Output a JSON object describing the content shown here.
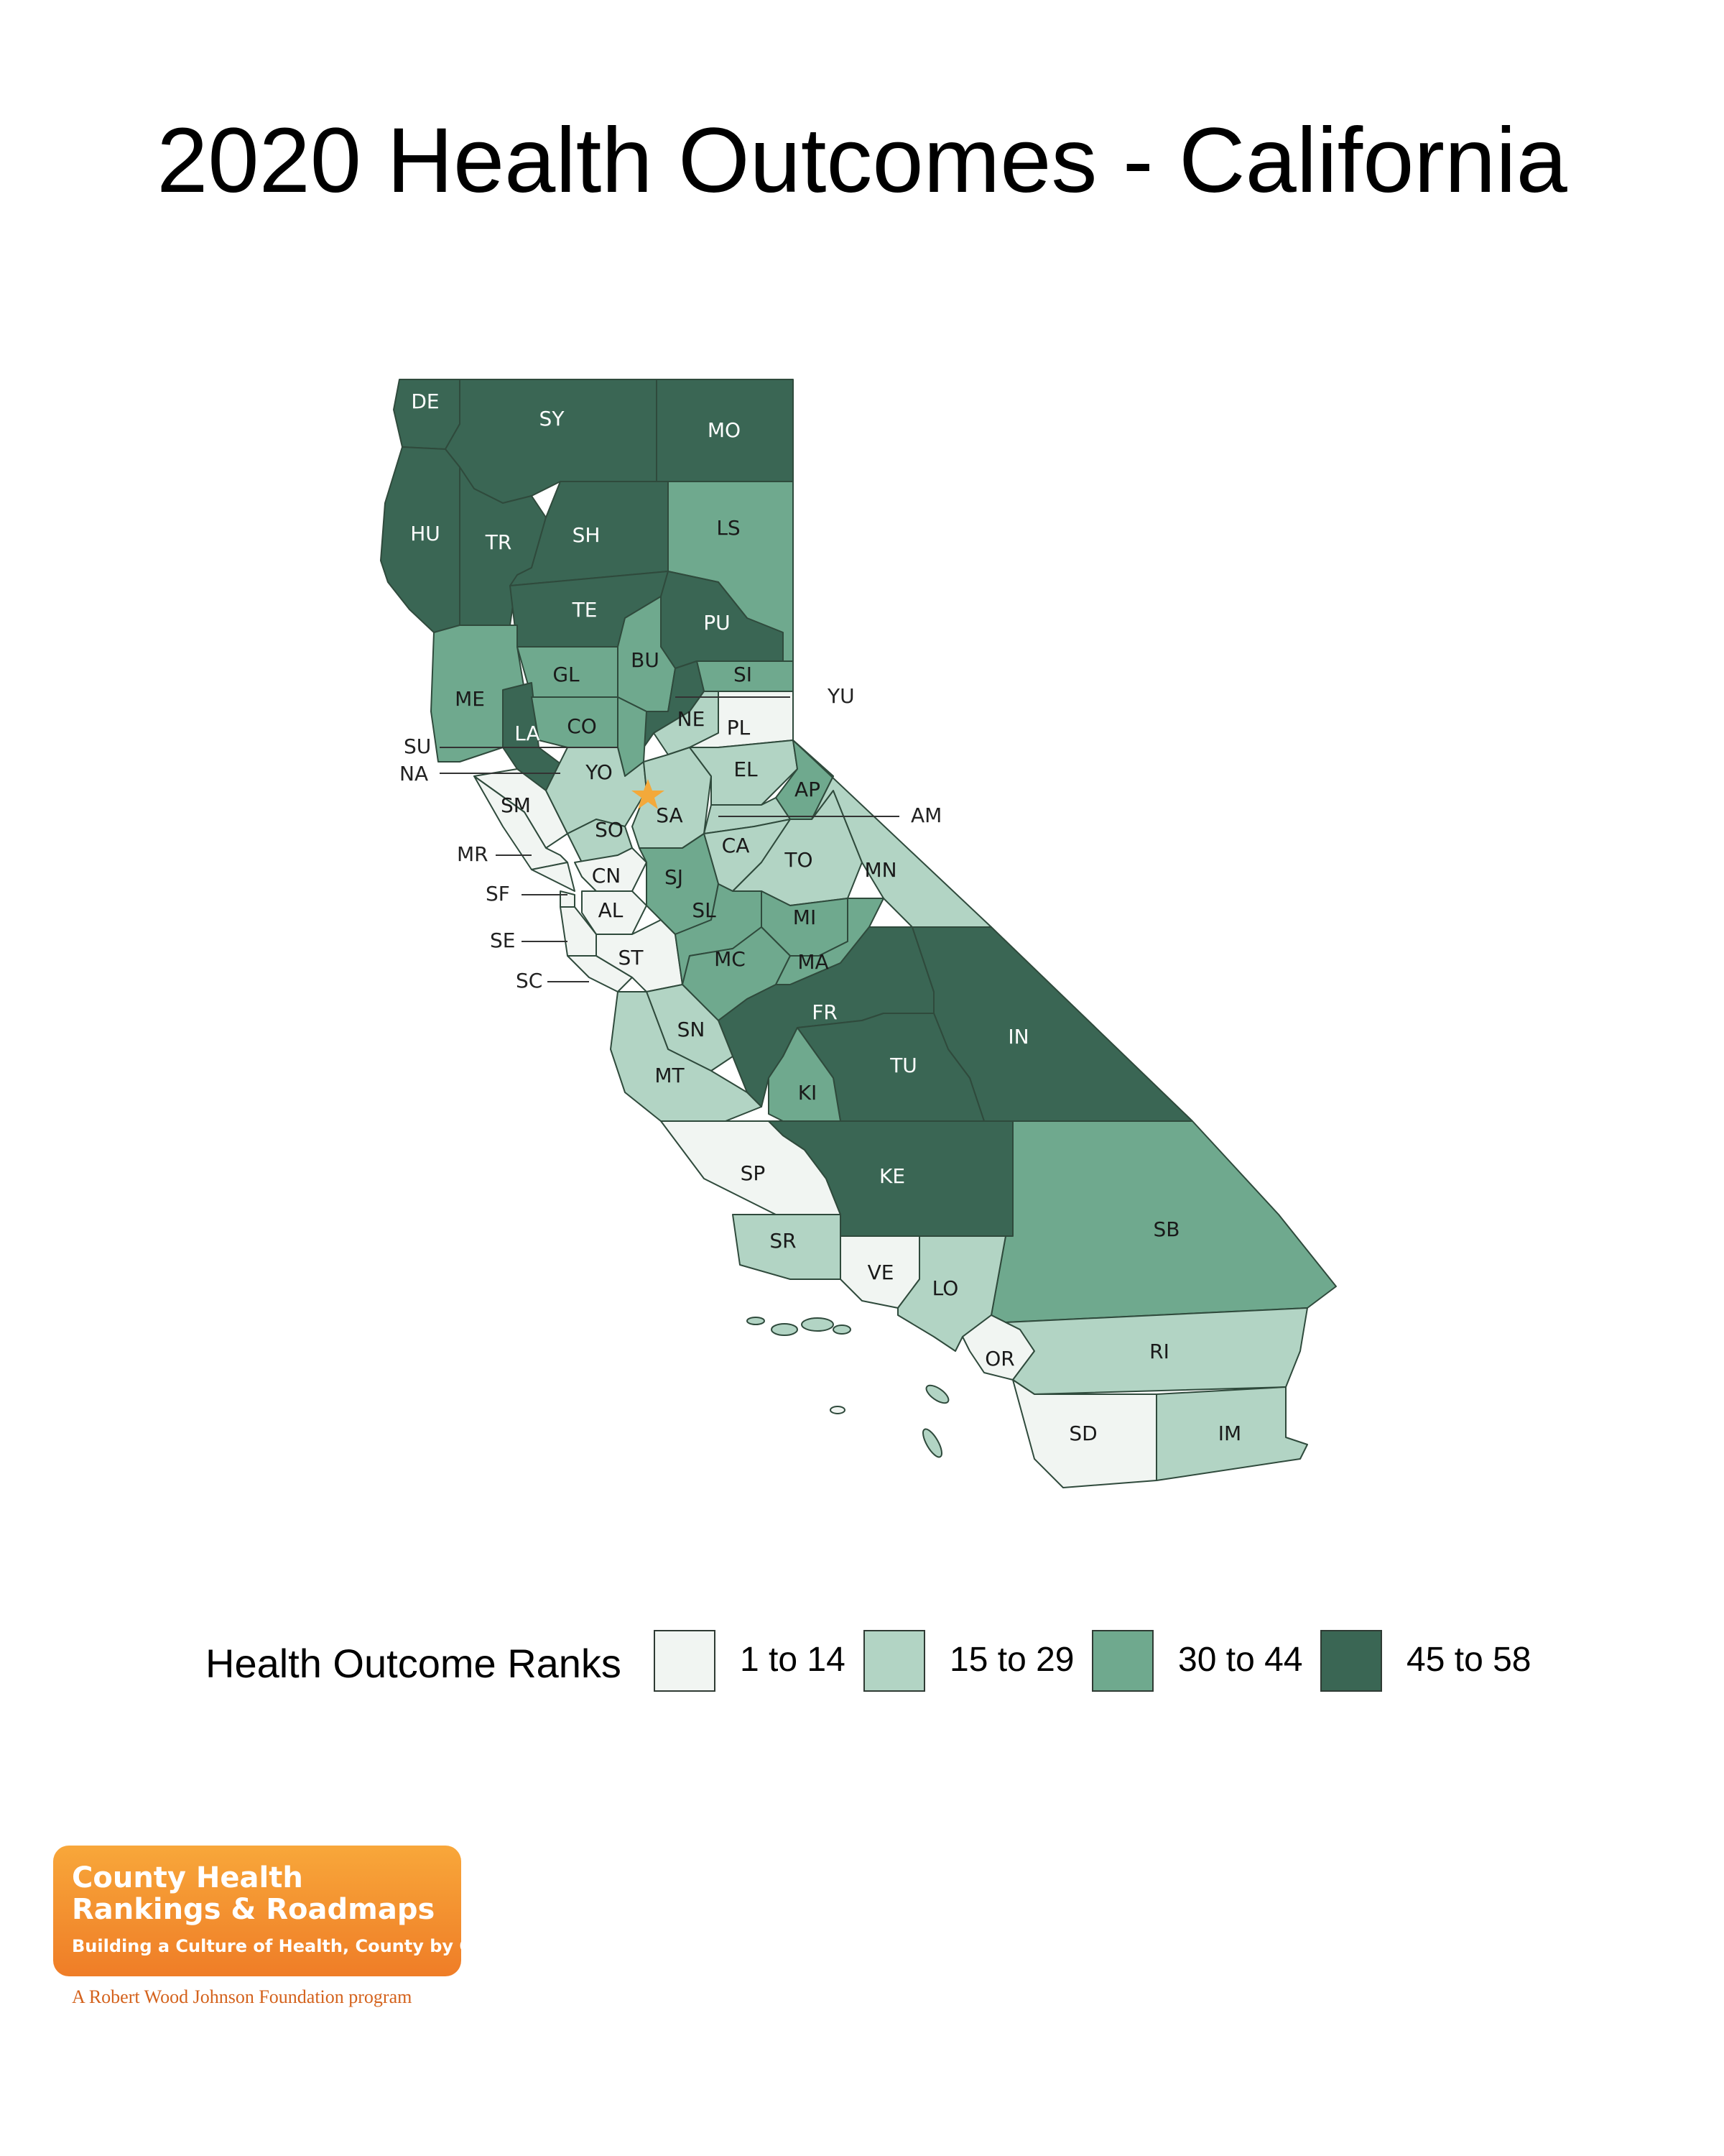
{
  "title": "2020 Health Outcomes - California",
  "legend": {
    "title": "Health Outcome Ranks",
    "classes": [
      {
        "label": "1 to 14",
        "color": "#f1f5f2"
      },
      {
        "label": "15 to 29",
        "color": "#b2d4c4"
      },
      {
        "label": "30 to 44",
        "color": "#6fa98e"
      },
      {
        "label": "45 to 58",
        "color": "#3a6654"
      }
    ]
  },
  "counties": {
    "DE": {
      "label": "DE",
      "class": 3
    },
    "SY": {
      "label": "SY",
      "class": 3
    },
    "MO": {
      "label": "MO",
      "class": 3
    },
    "HU": {
      "label": "HU",
      "class": 3
    },
    "TR": {
      "label": "TR",
      "class": 3
    },
    "SH": {
      "label": "SH",
      "class": 3
    },
    "LS": {
      "label": "LS",
      "class": 2
    },
    "TE": {
      "label": "TE",
      "class": 3
    },
    "PU": {
      "label": "PU",
      "class": 3
    },
    "ME": {
      "label": "ME",
      "class": 2
    },
    "GL": {
      "label": "GL",
      "class": 2
    },
    "BU": {
      "label": "BU",
      "class": 2
    },
    "SI": {
      "label": "SI",
      "class": 2
    },
    "YU": {
      "label": "YU",
      "class": 3
    },
    "LA": {
      "label": "LA",
      "class": 3
    },
    "CO": {
      "label": "CO",
      "class": 2
    },
    "SU": {
      "label": "SU",
      "class": 2
    },
    "NE": {
      "label": "NE",
      "class": 1
    },
    "PL": {
      "label": "PL",
      "class": 0
    },
    "NA": {
      "label": "NA",
      "class": 0
    },
    "YO": {
      "label": "YO",
      "class": 1
    },
    "EL": {
      "label": "EL",
      "class": 1
    },
    "AP": {
      "label": "AP",
      "class": 2
    },
    "AM": {
      "label": "AM",
      "class": 1
    },
    "SM": {
      "label": "SM",
      "class": 0
    },
    "SO": {
      "label": "SO",
      "class": 1
    },
    "SA": {
      "label": "SA",
      "class": 1
    },
    "CA": {
      "label": "CA",
      "class": 1
    },
    "MR": {
      "label": "MR",
      "class": 0
    },
    "TO": {
      "label": "TO",
      "class": 1
    },
    "MN": {
      "label": "MN",
      "class": 1
    },
    "CN": {
      "label": "CN",
      "class": 0
    },
    "SJ": {
      "label": "SJ",
      "class": 2
    },
    "SF": {
      "label": "SF",
      "class": 0
    },
    "AL": {
      "label": "AL",
      "class": 0
    },
    "SL": {
      "label": "SL",
      "class": 2
    },
    "MI": {
      "label": "MI",
      "class": 2
    },
    "SE": {
      "label": "SE",
      "class": 0
    },
    "ST": {
      "label": "ST",
      "class": 0
    },
    "MC": {
      "label": "MC",
      "class": 2
    },
    "MA": {
      "label": "MA",
      "class": 2
    },
    "SC": {
      "label": "SC",
      "class": 0
    },
    "FR": {
      "label": "FR",
      "class": 3
    },
    "IN": {
      "label": "IN",
      "class": 3
    },
    "SN": {
      "label": "SN",
      "class": 1
    },
    "TU": {
      "label": "TU",
      "class": 3
    },
    "MT": {
      "label": "MT",
      "class": 1
    },
    "KI": {
      "label": "KI",
      "class": 2
    },
    "SP": {
      "label": "SP",
      "class": 0
    },
    "KE": {
      "label": "KE",
      "class": 3
    },
    "SB": {
      "label": "SB",
      "class": 2
    },
    "SR": {
      "label": "SR",
      "class": 1
    },
    "VE": {
      "label": "VE",
      "class": 0
    },
    "LO": {
      "label": "LO",
      "class": 1
    },
    "OR": {
      "label": "OR",
      "class": 0
    },
    "RI": {
      "label": "RI",
      "class": 1
    },
    "SD": {
      "label": "SD",
      "class": 0
    },
    "IM": {
      "label": "IM",
      "class": 1
    }
  },
  "capital_marker": {
    "icon": "star-icon",
    "color": "#f3a93a"
  },
  "logo": {
    "line1": "County Health",
    "line2": "Rankings & Roadmaps",
    "tagline": "Building a Culture of Health, County by County",
    "sub": "A Robert Wood Johnson Foundation program"
  }
}
